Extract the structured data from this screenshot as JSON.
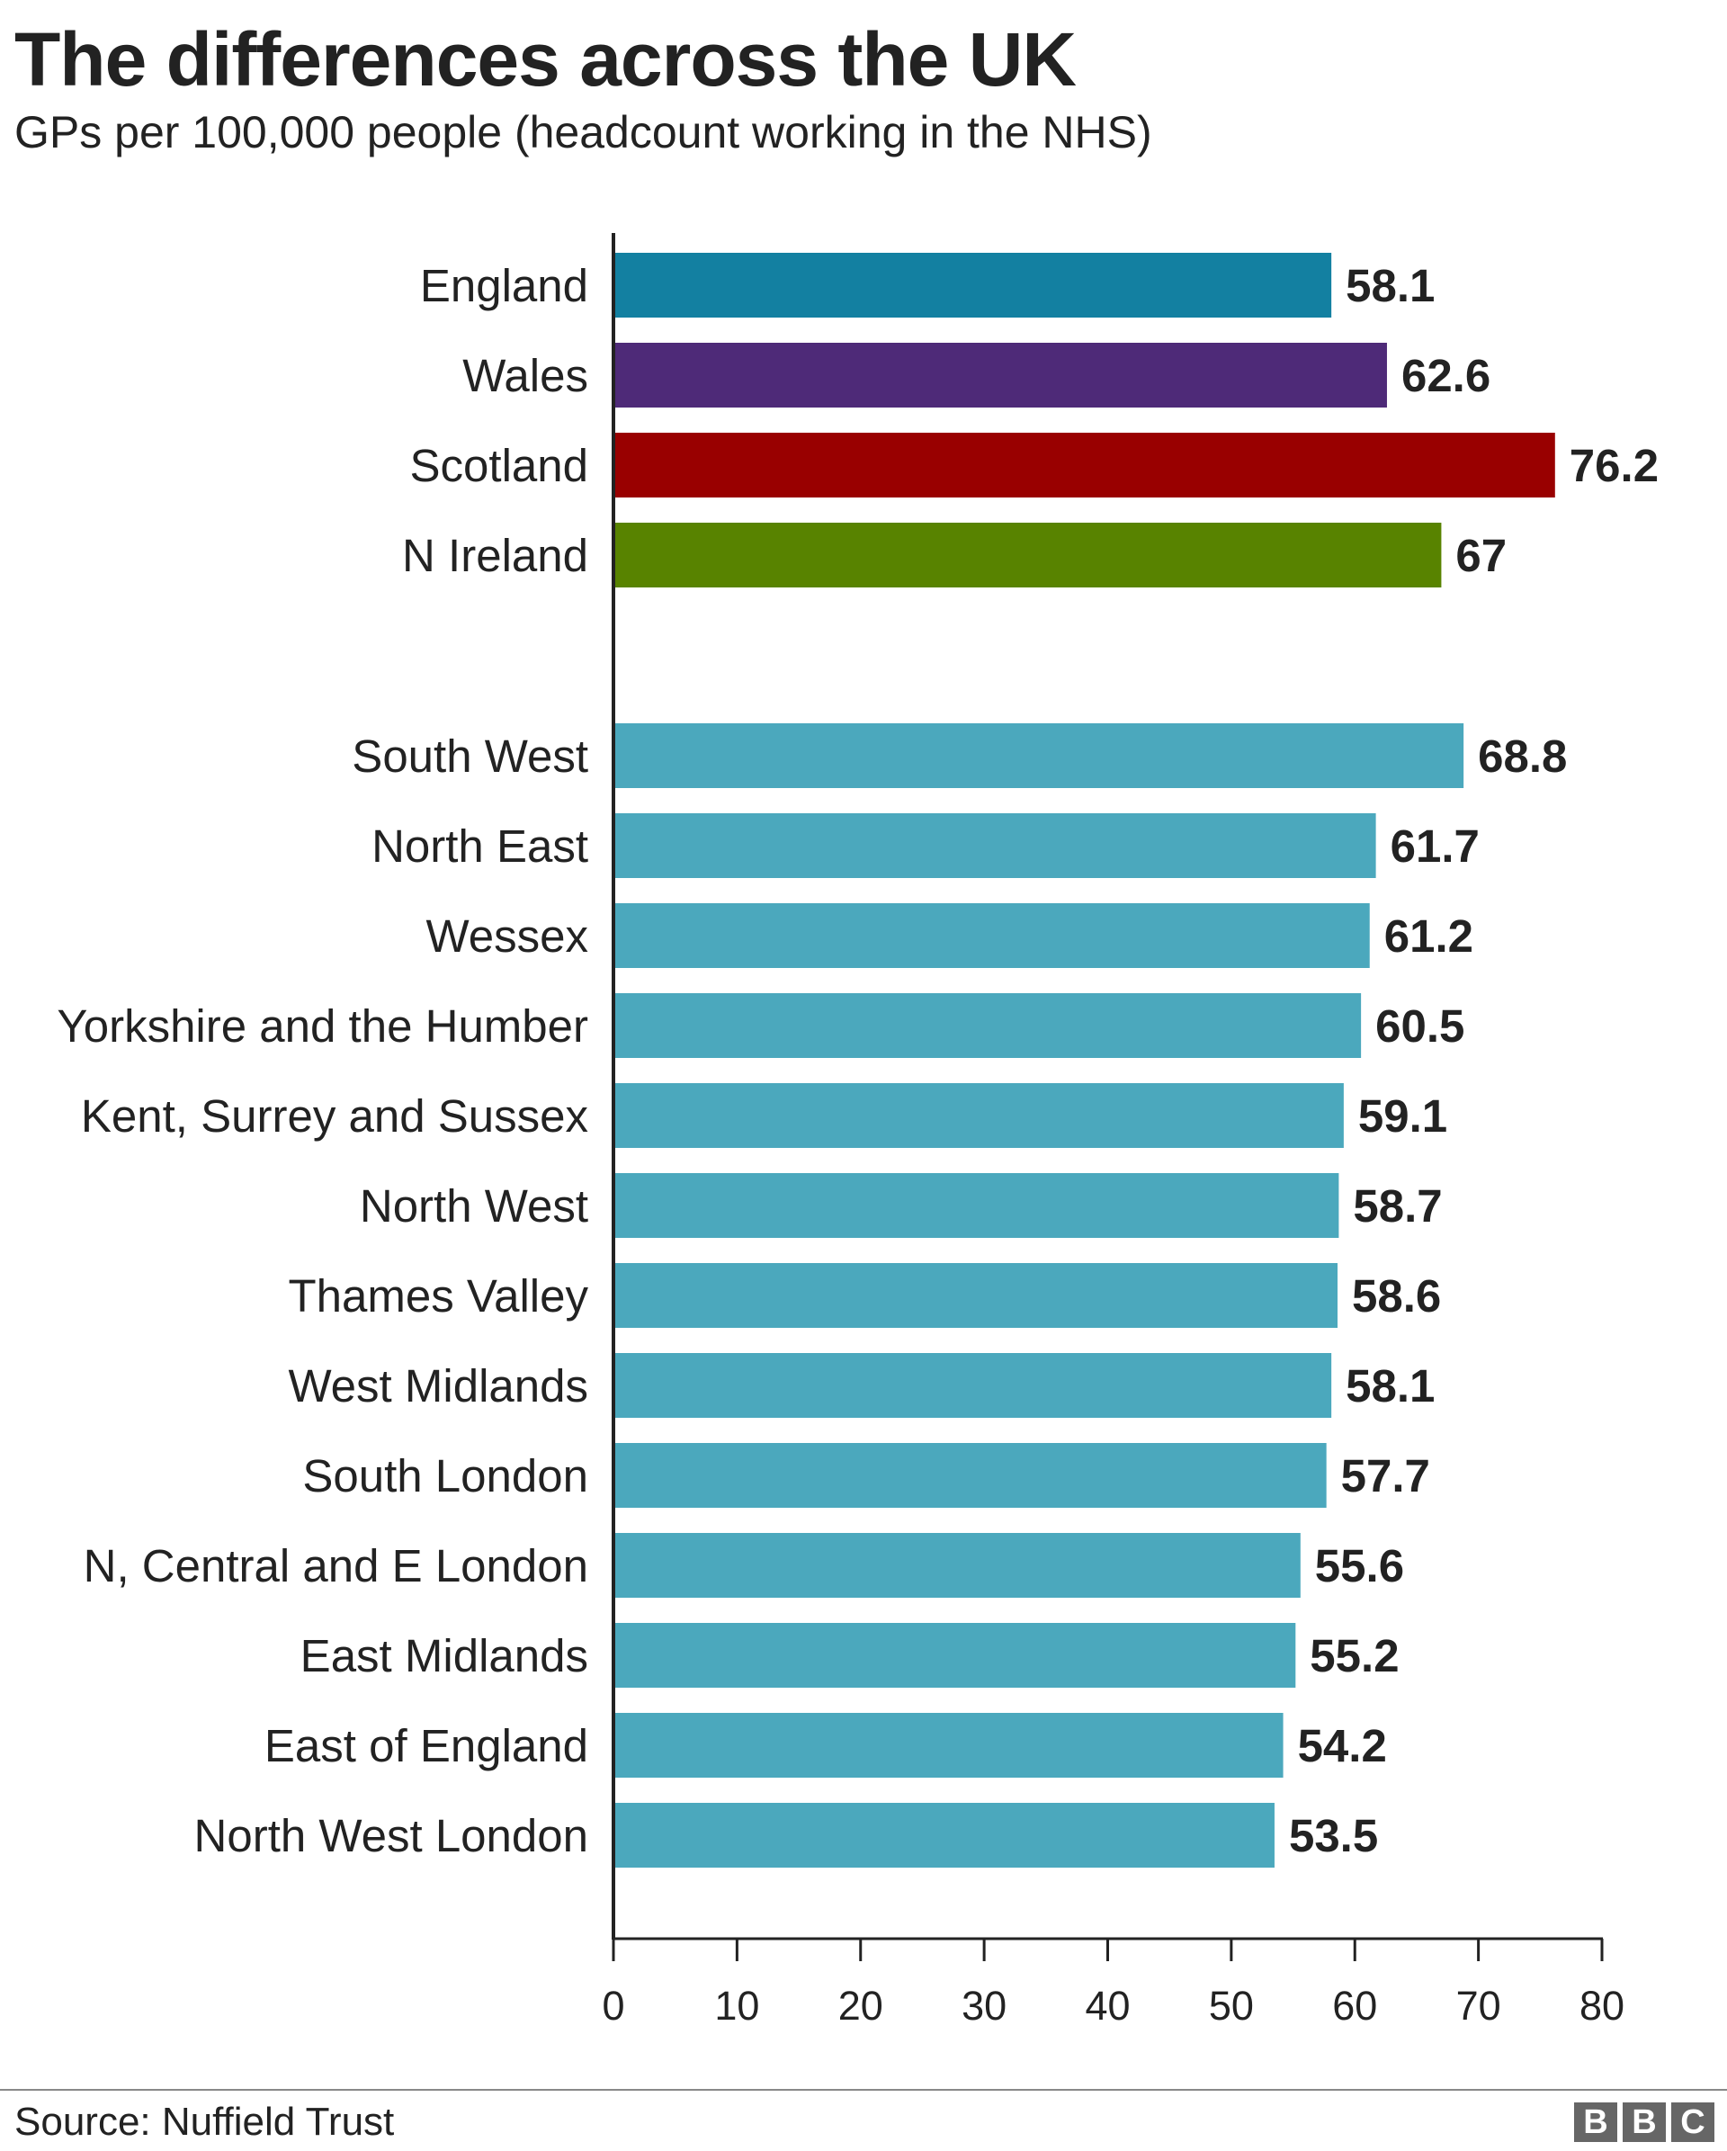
{
  "chart_data": {
    "type": "bar",
    "orientation": "horizontal",
    "title": "The differences across the UK",
    "subtitle": "GPs per 100,000 people (headcount working in the NHS)",
    "xlim": [
      0,
      80
    ],
    "xticks": [
      0,
      10,
      20,
      30,
      40,
      50,
      60,
      70,
      80
    ],
    "grid": false,
    "groups": [
      {
        "categories": [
          "England",
          "Wales",
          "Scotland",
          "N Ireland"
        ],
        "values": [
          58.1,
          62.6,
          76.2,
          67
        ],
        "value_labels": [
          "58.1",
          "62.6",
          "76.2",
          "67"
        ],
        "colors": [
          "#1380a1",
          "#4e2a78",
          "#990000",
          "#588300"
        ]
      },
      {
        "categories": [
          "South West",
          "North East",
          "Wessex",
          "Yorkshire and the Humber",
          "Kent, Surrey and Sussex",
          "North West",
          "Thames Valley",
          "West Midlands",
          "South London",
          "N, Central and E London",
          "East Midlands",
          "East of England",
          "North West London"
        ],
        "values": [
          68.8,
          61.7,
          61.2,
          60.5,
          59.1,
          58.7,
          58.6,
          58.1,
          57.7,
          55.6,
          55.2,
          54.2,
          53.5
        ],
        "value_labels": [
          "68.8",
          "61.7",
          "61.2",
          "60.5",
          "59.1",
          "58.7",
          "58.6",
          "58.1",
          "57.7",
          "55.6",
          "55.2",
          "54.2",
          "53.5"
        ],
        "color": "#4ba8bd"
      }
    ]
  },
  "footer": {
    "source": "Source: Nuffield Trust",
    "logo": [
      "B",
      "B",
      "C"
    ]
  }
}
